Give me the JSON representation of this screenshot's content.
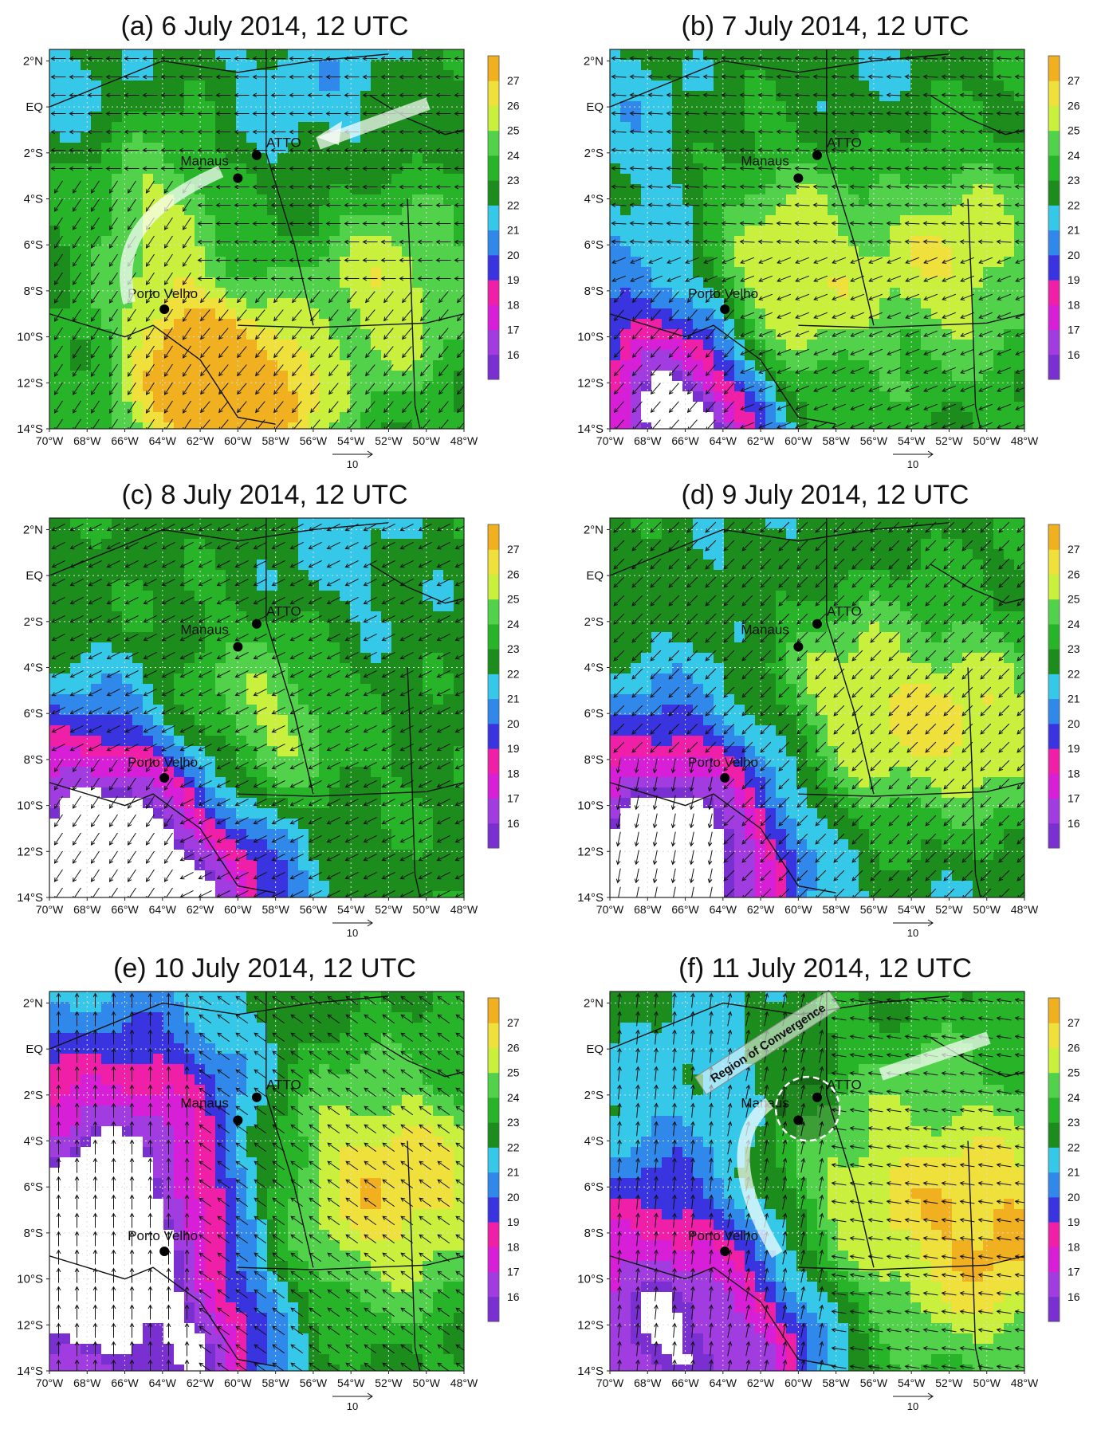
{
  "figure": {
    "panels": [
      {
        "id": "a",
        "title": "(a)  6 July 2014, 12 UTC",
        "arrow_annotations": 2,
        "annotation": "",
        "dashed_circle": false
      },
      {
        "id": "b",
        "title": "(b)  7 July 2014, 12 UTC",
        "arrow_annotations": 0,
        "annotation": "",
        "dashed_circle": false
      },
      {
        "id": "c",
        "title": "(c)  8 July 2014, 12 UTC",
        "arrow_annotations": 0,
        "annotation": "",
        "dashed_circle": false
      },
      {
        "id": "d",
        "title": "(d)  9 July 2014, 12 UTC",
        "arrow_annotations": 0,
        "annotation": "",
        "dashed_circle": false
      },
      {
        "id": "e",
        "title": "(e)  10 July 2014, 12 UTC",
        "arrow_annotations": 0,
        "annotation": "",
        "dashed_circle": false
      },
      {
        "id": "f",
        "title": "(f)  11 July 2014, 12 UTC",
        "arrow_annotations": 2,
        "annotation": "Region of Convergence",
        "dashed_circle": true
      }
    ],
    "lon_ticks": [
      "70°W",
      "68°W",
      "66°W",
      "64°W",
      "62°W",
      "60°W",
      "58°W",
      "56°W",
      "54°W",
      "52°W",
      "50°W",
      "48°W"
    ],
    "lat_ticks": [
      "2°N",
      "EQ",
      "2°S",
      "4°S",
      "6°S",
      "8°S",
      "10°S",
      "12°S",
      "14°S"
    ],
    "colorbar_levels": [
      "16",
      "17",
      "18",
      "19",
      "20",
      "21",
      "22",
      "23",
      "24",
      "25",
      "26",
      "27"
    ],
    "colorbar_colors": [
      "#7a2fd0",
      "#a13ce0",
      "#d81fd8",
      "#f01fa8",
      "#3a34e0",
      "#2f88ea",
      "#35c8e8",
      "#1c8c1c",
      "#28b428",
      "#52d24a",
      "#c8f03c",
      "#f0e03c",
      "#f0b020"
    ],
    "reference_vector": "10",
    "stations": [
      {
        "name": "Manaus",
        "lon": -60.0,
        "lat": -3.1
      },
      {
        "name": "ATTO",
        "lon": -59.0,
        "lat": -2.1
      },
      {
        "name": "Porto Velho",
        "lon": -63.9,
        "lat": -8.8
      }
    ]
  }
}
